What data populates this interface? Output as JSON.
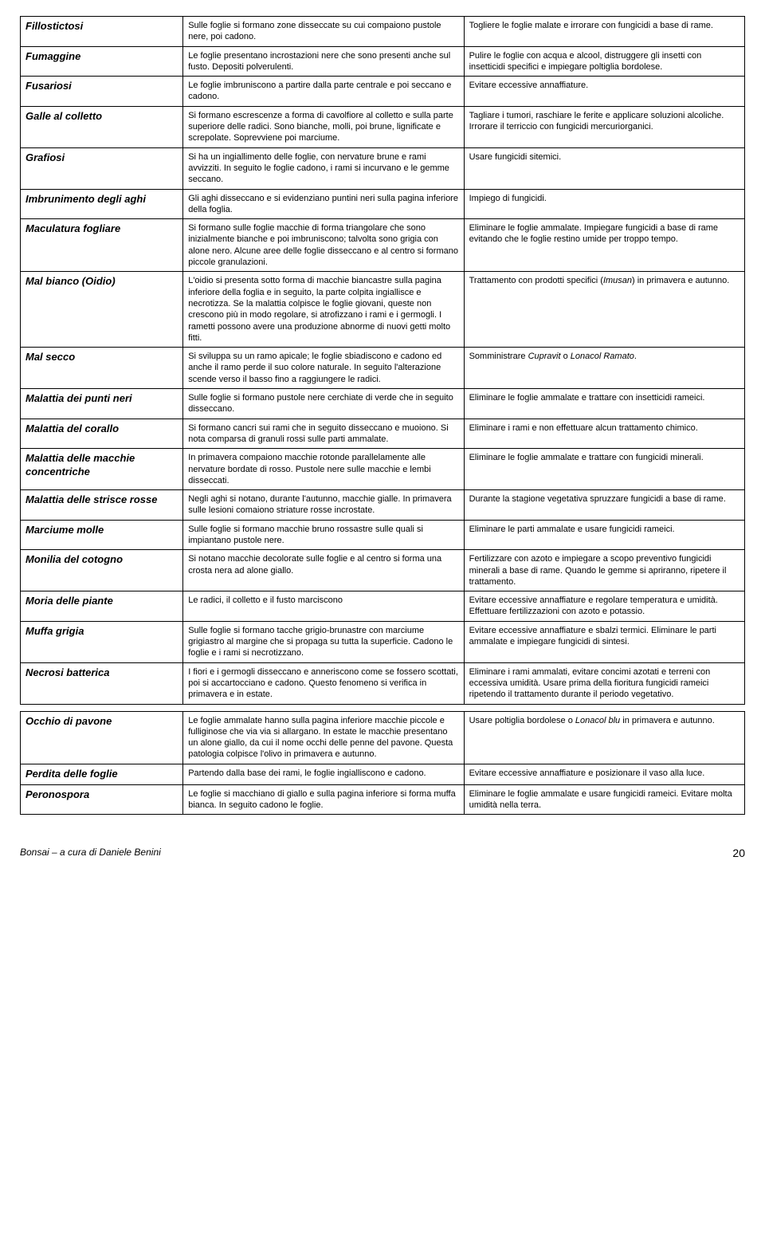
{
  "rows": [
    {
      "name": "Fillostictosi",
      "desc": "Sulle foglie si formano zone disseccate su cui compaiono pustole nere, poi cadono.",
      "treat": "Togliere le foglie malate e irrorare con fungicidi a base di rame."
    },
    {
      "name": "Fumaggine",
      "desc": "Le foglie presentano incrostazioni nere che sono presenti anche sul fusto. Depositi polverulenti.",
      "treat": "Pulire le foglie con acqua e alcool, distruggere gli insetti con insetticidi specifici e impiegare poltiglia bordolese."
    },
    {
      "name": "Fusariosi",
      "desc": "Le foglie imbruniscono a partire dalla parte centrale e poi seccano e cadono.",
      "treat": "Evitare eccessive annaffiature."
    },
    {
      "name": "Galle al colletto",
      "desc": "Si formano escrescenze a forma di cavolfiore al colletto e sulla parte superiore delle radici. Sono bianche, molli, poi brune, lignificate e screpolate. Soprevviene poi marciume.",
      "treat": "Tagliare i tumori, raschiare le ferite e applicare soluzioni alcoliche. Irrorare il terriccio con fungicidi mercuriorganici."
    },
    {
      "name": "Grafiosi",
      "desc": "Si ha un ingiallimento delle foglie, con nervature brune e rami avvizziti. In seguito le foglie cadono, i rami si incurvano e le gemme seccano.",
      "treat": "Usare fungicidi sitemici."
    },
    {
      "name": "Imbrunimento degli aghi",
      "desc": "Gli aghi disseccano e si evidenziano puntini neri sulla pagina inferiore della foglia.",
      "treat": "Impiego di fungicidi."
    },
    {
      "name": "Maculatura fogliare",
      "desc": "Si formano sulle foglie macchie di forma triangolare che sono inizialmente bianche e poi imbruniscono; talvolta sono grigia con alone nero. Alcune aree delle foglie disseccano e al centro si formano piccole granulazioni.",
      "treat": "Eliminare le foglie ammalate. Impiegare fungicidi a base di rame evitando che le foglie restino umide per troppo tempo."
    },
    {
      "name": "Mal bianco (Oidio)",
      "desc": "L'oidio si presenta sotto forma di macchie biancastre sulla pagina inferiore della foglia e in seguito, la parte colpita ingiallisce e necrotizza. Se la malattia colpisce le foglie giovani, queste non crescono più in modo regolare, si atrofizzano i rami e i germogli. I rametti possono avere una produzione abnorme di nuovi getti molto fitti.",
      "treat": "Trattamento con prodotti specifici (<span class=\"italic\">Imusan</span>) in primavera e autunno."
    },
    {
      "name": "Mal secco",
      "desc": "Si sviluppa su un ramo apicale; le foglie sbiadiscono e cadono ed anche il ramo perde il suo colore naturale. In seguito l'alterazione scende verso il basso fino a raggiungere le radici.",
      "treat": "Somministrare <span class=\"italic\">Cupravit</span> o <span class=\"italic\">Lonacol Ramato</span>."
    },
    {
      "name": "Malattia dei punti neri",
      "desc": "Sulle foglie si formano pustole nere cerchiate di verde che in seguito disseccano.",
      "treat": "Eliminare le foglie ammalate e trattare con insetticidi rameici."
    },
    {
      "name": "Malattia del corallo",
      "desc": "Si formano cancri sui rami che in seguito disseccano e muoiono. Si nota comparsa di granuli rossi sulle parti ammalate.",
      "treat": "Eliminare i rami e non effettuare alcun trattamento chimico."
    },
    {
      "name": "Malattia delle macchie concentriche",
      "desc": "In primavera compaiono macchie rotonde parallelamente alle nervature bordate di rosso. Pustole nere sulle macchie e lembi disseccati.",
      "treat": "Eliminare le foglie ammalate e trattare con fungicidi minerali."
    },
    {
      "name": "Malattia delle strisce rosse",
      "desc": "Negli aghi si notano, durante l'autunno, macchie gialle. In primavera sulle lesioni comaiono striature rosse incrostate.",
      "treat": "Durante la stagione vegetativa spruzzare fungicidi a base di rame."
    },
    {
      "name": "Marciume molle",
      "desc": "Sulle foglie si formano macchie bruno rossastre sulle quali si impiantano pustole nere.",
      "treat": "Eliminare le parti ammalate e usare fungicidi rameici."
    },
    {
      "name": "Monilia del cotogno",
      "desc": "Si notano macchie decolorate sulle foglie e al centro si forma una crosta nera ad alone giallo.",
      "treat": "Fertilizzare con azoto e impiegare a scopo preventivo fungicidi minerali a base di rame. Quando le gemme si apriranno, ripetere il trattamento."
    },
    {
      "name": "Moria delle piante",
      "desc": "Le radici, il colletto e il fusto marciscono",
      "treat": "Evitare eccessive annaffiature e regolare temperatura e umidità. Effettuare fertilizzazioni con azoto e potassio."
    },
    {
      "name": "Muffa grigia",
      "desc": "Sulle foglie si formano tacche grigio-brunastre con marciume grigiastro al margine che si propaga su tutta la superficie. Cadono le foglie e i rami si necrotizzano.",
      "treat": "Evitare eccessive annaffiature e sbalzi termici. Eliminare le parti ammalate e impiegare fungicidi di sintesi."
    },
    {
      "name": "Necrosi batterica",
      "desc": "I fiori e i germogli disseccano e anneriscono come se fossero scottati, poi si accartocciano e cadono. Questo fenomeno si verifica in primavera e in estate.",
      "treat": "Eliminare i rami ammalati, evitare concimi azotati e terreni con  eccessiva umidità. Usare prima della fioritura fungicidi rameici ripetendo il trattamento durante il periodo vegetativo."
    }
  ],
  "rows2": [
    {
      "name": "Occhio di pavone",
      "desc": "Le foglie ammalate hanno sulla pagina inferiore macchie piccole e fulliginose che via via si allargano. In estate le macchie presentano un alone giallo, da cui il nome occhi delle penne del pavone. Questa patologia colpisce l'olivo in primavera e autunno.",
      "treat": "Usare poltiglia bordolese o <span class=\"italic\">Lonacol blu</span> in primavera e autunno."
    },
    {
      "name": "Perdita delle foglie",
      "desc": "Partendo dalla base dei rami, le foglie ingialliscono e cadono.",
      "treat": "Evitare eccessive annaffiature e posizionare il vaso alla luce."
    },
    {
      "name": "Peronospora",
      "desc": "Le foglie si macchiano di giallo e sulla pagina inferiore si forma muffa bianca. In seguito cadono le foglie.",
      "treat": "Eliminare le foglie ammalate e usare fungicidi rameici. Evitare molta umidità nella terra."
    }
  ],
  "footer": {
    "left": "Bonsai – a cura di Daniele Benini",
    "page": "20"
  }
}
